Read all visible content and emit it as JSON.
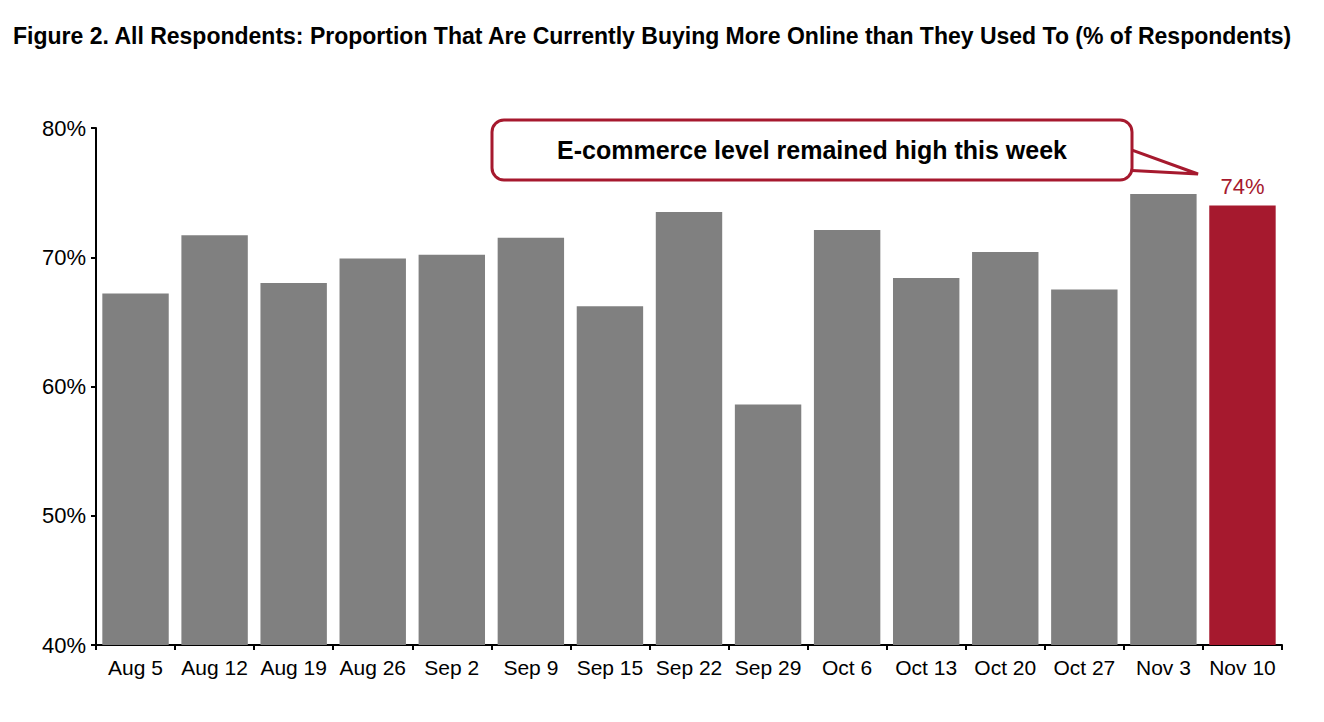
{
  "chart_data": {
    "type": "bar",
    "title": "Figure 2. All Respondents: Proportion That Are Currently Buying More Online than They Used To (% of Respondents)",
    "categories": [
      "Aug 5",
      "Aug 12",
      "Aug 19",
      "Aug 26",
      "Sep 2",
      "Sep 9",
      "Sep 15",
      "Sep 22",
      "Sep 29",
      "Oct 6",
      "Oct 13",
      "Oct 20",
      "Oct 27",
      "Nov 3",
      "Nov 10"
    ],
    "values": [
      67.2,
      71.7,
      68.0,
      69.9,
      70.2,
      71.5,
      66.2,
      73.5,
      58.6,
      72.1,
      68.4,
      70.4,
      67.5,
      74.9,
      74.0
    ],
    "value_labels": [
      null,
      null,
      null,
      null,
      null,
      null,
      null,
      null,
      null,
      null,
      null,
      null,
      null,
      null,
      "74%"
    ],
    "colors": [
      "#808080",
      "#808080",
      "#808080",
      "#808080",
      "#808080",
      "#808080",
      "#808080",
      "#808080",
      "#808080",
      "#808080",
      "#808080",
      "#808080",
      "#808080",
      "#808080",
      "#a6192e"
    ],
    "ylim": [
      40,
      80
    ],
    "yticks": [
      {
        "value": 40,
        "label": "40%"
      },
      {
        "value": 50,
        "label": "50%"
      },
      {
        "value": 60,
        "label": "60%"
      },
      {
        "value": 70,
        "label": "70%"
      },
      {
        "value": 80,
        "label": "80%"
      }
    ],
    "grid": false,
    "annotations": [
      {
        "text": "E-commerce level remained high this week",
        "category": "Nov 10"
      }
    ]
  }
}
